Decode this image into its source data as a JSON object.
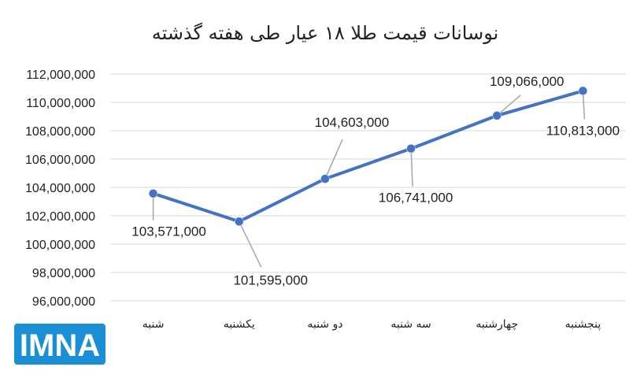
{
  "chart_data": {
    "type": "line",
    "title": "نوسانات قیمت طلا ۱۸ عیار طی هفته گذشته",
    "categories": [
      "شنبه",
      "یکشنبه",
      "دو شنبه",
      "سه شنبه",
      "چهارشنبه",
      "پنجشنبه"
    ],
    "series": [
      {
        "values": [
          103571000,
          101595000,
          104603000,
          106741000,
          109066000,
          110813000
        ],
        "color": "#4472c4"
      }
    ],
    "data_labels": [
      "103,571,000",
      "101,595,000",
      "104,603,000",
      "106,741,000",
      "109,066,000",
      "110,813,000"
    ],
    "y_ticks": [
      "96,000,000",
      "98,000,000",
      "100,000,000",
      "102,000,000",
      "104,000,000",
      "106,000,000",
      "108,000,000",
      "110,000,000",
      "112,000,000"
    ],
    "ylim": [
      96000000,
      112000000
    ],
    "grid": true
  },
  "logo": {
    "text": "IMNA",
    "icon": "imna-logo",
    "color": "#1a8fd6"
  }
}
